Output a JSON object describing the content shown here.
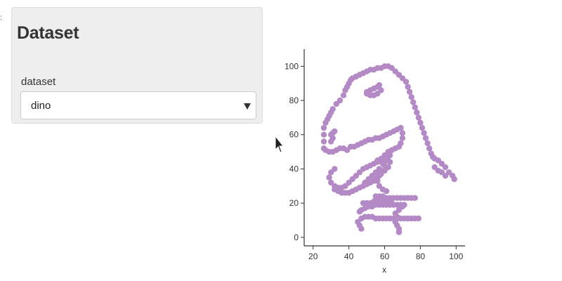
{
  "sidebar": {
    "title": "Dataset",
    "field_label": "dataset",
    "selected_option": "dino"
  },
  "icons": {
    "caret": "chevron-down-icon",
    "cursor": "mouse-pointer-icon"
  },
  "colors": {
    "point": "#b48ac6",
    "axis": "#333333",
    "panel": "#eeeeee"
  },
  "chart_data": {
    "type": "scatter",
    "title": "",
    "xlabel": "x",
    "ylabel": "",
    "xlim": [
      15,
      105
    ],
    "ylim": [
      -5,
      110
    ],
    "xticks": [
      20,
      40,
      60,
      80,
      100
    ],
    "yticks": [
      0,
      20,
      40,
      60,
      80,
      100
    ],
    "grid": false,
    "series": [
      {
        "points": [
          [
            26,
            52
          ],
          [
            26,
            56
          ],
          [
            26,
            60
          ],
          [
            26,
            64
          ],
          [
            27,
            67
          ],
          [
            28,
            69
          ],
          [
            29,
            71
          ],
          [
            30,
            73
          ],
          [
            31,
            75
          ],
          [
            33,
            78
          ],
          [
            35,
            80
          ],
          [
            37,
            83
          ],
          [
            38,
            86
          ],
          [
            39,
            88
          ],
          [
            40,
            90
          ],
          [
            41,
            92
          ],
          [
            42,
            93
          ],
          [
            44,
            94
          ],
          [
            46,
            95
          ],
          [
            48,
            96
          ],
          [
            50,
            97
          ],
          [
            52,
            98
          ],
          [
            54,
            98
          ],
          [
            56,
            99
          ],
          [
            58,
            99
          ],
          [
            60,
            100
          ],
          [
            62,
            100
          ],
          [
            64,
            99
          ],
          [
            66,
            97
          ],
          [
            68,
            95
          ],
          [
            70,
            93
          ],
          [
            72,
            91
          ],
          [
            73,
            88
          ],
          [
            74,
            85
          ],
          [
            75,
            82
          ],
          [
            76,
            79
          ],
          [
            77,
            76
          ],
          [
            78,
            73
          ],
          [
            79,
            70
          ],
          [
            80,
            67
          ],
          [
            81,
            64
          ],
          [
            82,
            61
          ],
          [
            83,
            58
          ],
          [
            84,
            55
          ],
          [
            85,
            52
          ],
          [
            86,
            49
          ],
          [
            87,
            47
          ],
          [
            88,
            46
          ],
          [
            90,
            45
          ],
          [
            92,
            43
          ],
          [
            94,
            41
          ],
          [
            96,
            38
          ],
          [
            98,
            36
          ],
          [
            99,
            34
          ],
          [
            88,
            41
          ],
          [
            90,
            39
          ],
          [
            92,
            38
          ],
          [
            94,
            36
          ],
          [
            27,
            51
          ],
          [
            29,
            50
          ],
          [
            31,
            50
          ],
          [
            33,
            51
          ],
          [
            35,
            52
          ],
          [
            37,
            52
          ],
          [
            39,
            51
          ],
          [
            41,
            53
          ],
          [
            43,
            53
          ],
          [
            45,
            54
          ],
          [
            47,
            55
          ],
          [
            49,
            56
          ],
          [
            51,
            57
          ],
          [
            53,
            57
          ],
          [
            55,
            58
          ],
          [
            57,
            58
          ],
          [
            59,
            59
          ],
          [
            61,
            60
          ],
          [
            63,
            61
          ],
          [
            65,
            62
          ],
          [
            67,
            63
          ],
          [
            69,
            64
          ],
          [
            70,
            61
          ],
          [
            70,
            58
          ],
          [
            69,
            55
          ],
          [
            68,
            53
          ],
          [
            66,
            52
          ],
          [
            64,
            51
          ],
          [
            62,
            50
          ],
          [
            60,
            48
          ],
          [
            58,
            46
          ],
          [
            56,
            45
          ],
          [
            30,
            60
          ],
          [
            31,
            61
          ],
          [
            32,
            62
          ],
          [
            31,
            58
          ],
          [
            30,
            56
          ],
          [
            50,
            85
          ],
          [
            52,
            86
          ],
          [
            54,
            87
          ],
          [
            56,
            88
          ],
          [
            57,
            89
          ],
          [
            58,
            86
          ],
          [
            56,
            84
          ],
          [
            54,
            83
          ],
          [
            52,
            83
          ],
          [
            50,
            84
          ],
          [
            32,
            40
          ],
          [
            30,
            38
          ],
          [
            29,
            35
          ],
          [
            30,
            32
          ],
          [
            32,
            30
          ],
          [
            34,
            29
          ],
          [
            36,
            29
          ],
          [
            38,
            30
          ],
          [
            40,
            32
          ],
          [
            42,
            34
          ],
          [
            44,
            36
          ],
          [
            46,
            38
          ],
          [
            48,
            40
          ],
          [
            50,
            41
          ],
          [
            52,
            42
          ],
          [
            54,
            43
          ],
          [
            56,
            44
          ],
          [
            58,
            45
          ],
          [
            60,
            46
          ],
          [
            62,
            47
          ],
          [
            63,
            44
          ],
          [
            62,
            41
          ],
          [
            60,
            39
          ],
          [
            58,
            37
          ],
          [
            56,
            35
          ],
          [
            54,
            33
          ],
          [
            52,
            32
          ],
          [
            50,
            31
          ],
          [
            48,
            30
          ],
          [
            46,
            29
          ],
          [
            44,
            28
          ],
          [
            42,
            27
          ],
          [
            40,
            26
          ],
          [
            38,
            26
          ],
          [
            36,
            26
          ],
          [
            34,
            27
          ],
          [
            32,
            28
          ],
          [
            49,
            32
          ],
          [
            51,
            34
          ],
          [
            53,
            36
          ],
          [
            55,
            38
          ],
          [
            57,
            40
          ],
          [
            59,
            43
          ],
          [
            61,
            45
          ],
          [
            63,
            48
          ],
          [
            64,
            51
          ],
          [
            60,
            42
          ],
          [
            58,
            39
          ],
          [
            57,
            36
          ],
          [
            56,
            33
          ],
          [
            57,
            30
          ],
          [
            59,
            28
          ],
          [
            61,
            27
          ],
          [
            55,
            24
          ],
          [
            57,
            24
          ],
          [
            59,
            24
          ],
          [
            61,
            23
          ],
          [
            63,
            23
          ],
          [
            65,
            23
          ],
          [
            67,
            23
          ],
          [
            69,
            23
          ],
          [
            71,
            23
          ],
          [
            73,
            23
          ],
          [
            75,
            23
          ],
          [
            77,
            23
          ],
          [
            47,
            11
          ],
          [
            49,
            12
          ],
          [
            51,
            12
          ],
          [
            53,
            12
          ],
          [
            55,
            11
          ],
          [
            57,
            11
          ],
          [
            59,
            11
          ],
          [
            61,
            11
          ],
          [
            63,
            11
          ],
          [
            65,
            11
          ],
          [
            67,
            11
          ],
          [
            69,
            11
          ],
          [
            71,
            11
          ],
          [
            73,
            11
          ],
          [
            75,
            11
          ],
          [
            77,
            11
          ],
          [
            79,
            11
          ],
          [
            46,
            15
          ],
          [
            47,
            16
          ],
          [
            49,
            17
          ],
          [
            51,
            18
          ],
          [
            53,
            18
          ],
          [
            55,
            19
          ],
          [
            57,
            19
          ],
          [
            59,
            19
          ],
          [
            61,
            19
          ],
          [
            63,
            19
          ],
          [
            65,
            19
          ],
          [
            67,
            19
          ],
          [
            69,
            19
          ],
          [
            71,
            19
          ],
          [
            48,
            20
          ],
          [
            50,
            20
          ],
          [
            52,
            20
          ],
          [
            54,
            21
          ],
          [
            56,
            21
          ],
          [
            58,
            22
          ],
          [
            60,
            21
          ],
          [
            62,
            20
          ],
          [
            64,
            20
          ],
          [
            45,
            9
          ],
          [
            46,
            7
          ],
          [
            47,
            5
          ],
          [
            66,
            9
          ],
          [
            67,
            7
          ],
          [
            68,
            5
          ],
          [
            68,
            3
          ],
          [
            67,
            12
          ],
          [
            66,
            14
          ],
          [
            68,
            16
          ],
          [
            70,
            18
          ]
        ]
      }
    ]
  }
}
